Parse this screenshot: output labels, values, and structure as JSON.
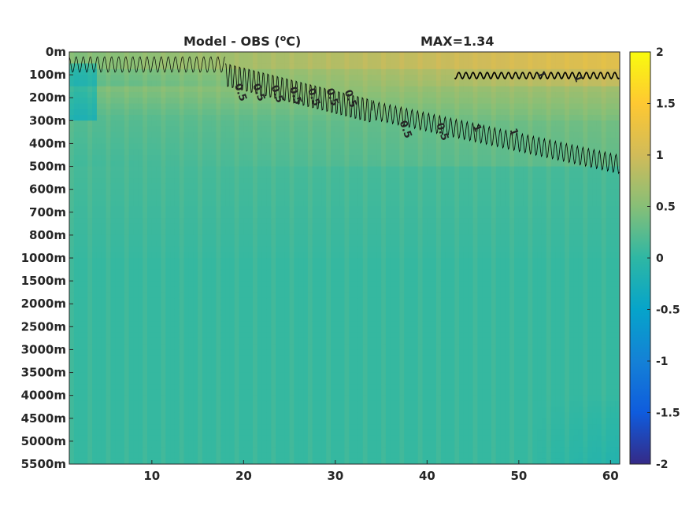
{
  "chart_data": {
    "type": "heatmap",
    "title": "Model - OBS (",
    "title_unit_sup": "o",
    "title_unit_tail": "C)",
    "annotation": "MAX=1.34",
    "xlabel": "",
    "ylabel": "",
    "x_range": [
      1,
      61
    ],
    "x_ticks": [
      10,
      20,
      30,
      40,
      50,
      60
    ],
    "y_labels": [
      "0m",
      "100m",
      "200m",
      "300m",
      "400m",
      "500m",
      "600m",
      "700m",
      "800m",
      "1000m",
      "1500m",
      "2000m",
      "2500m",
      "3000m",
      "3500m",
      "4000m",
      "4500m",
      "5000m",
      "5500m"
    ],
    "y_reversed": true,
    "colorbar": {
      "colormap": "parula",
      "range": [
        -2,
        2
      ],
      "ticks": [
        "2",
        "1.5",
        "1",
        "0.5",
        "0",
        "-0.5",
        "-1",
        "-1.5",
        "-2"
      ]
    },
    "contour_levels": [
      0.5,
      1
    ],
    "contour_labels": [
      "0.5",
      "0.5",
      "0.5",
      "0.5",
      "0.5",
      "0.5",
      "0.5",
      "0.5",
      "0.5",
      "1",
      "1",
      "1",
      "1"
    ],
    "grid": false,
    "legend": "none",
    "colors": {
      "axis": "#262626",
      "contour": "#000000"
    }
  }
}
